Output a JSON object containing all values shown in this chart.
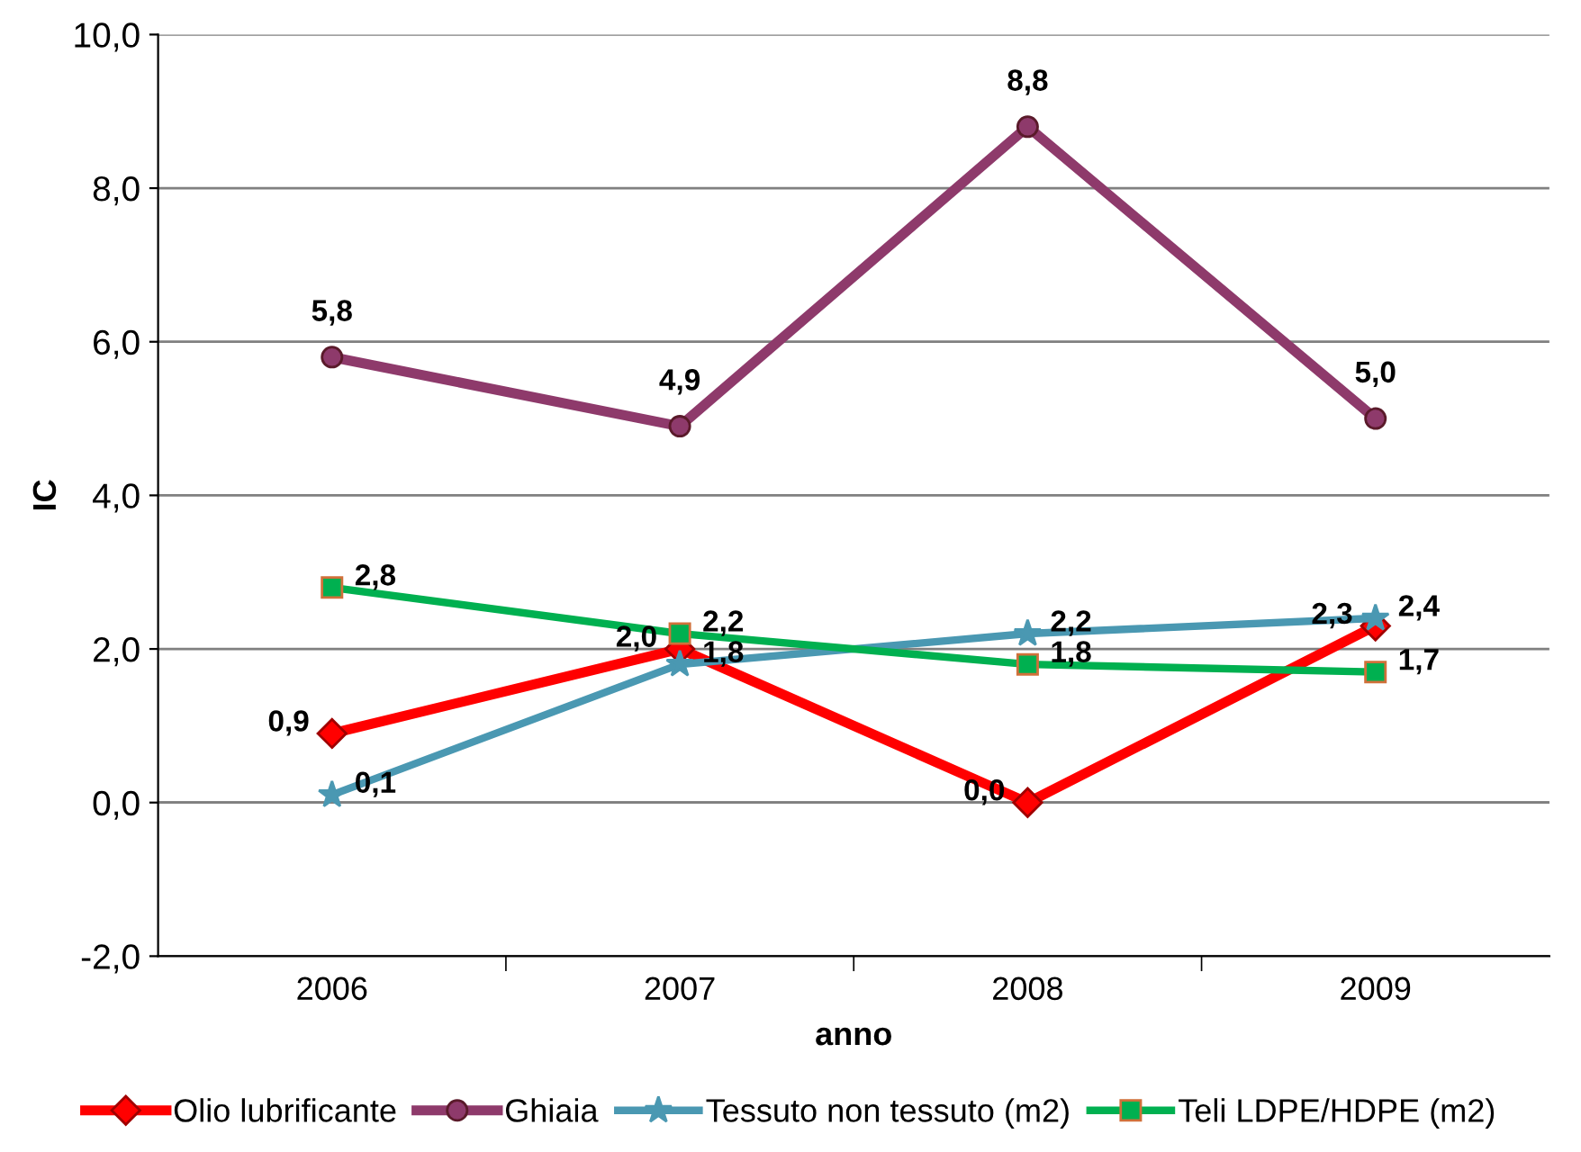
{
  "chart_data": {
    "type": "line",
    "xlabel": "anno",
    "ylabel": "IC",
    "categories": [
      "2006",
      "2007",
      "2008",
      "2009"
    ],
    "series": [
      {
        "name": "Olio lubrificante",
        "color": "#ff0000",
        "marker": "diamond",
        "values": [
          0.9,
          2.0,
          0.0,
          2.3
        ],
        "value_labels": [
          "0,9",
          "2,0",
          "0,0",
          "2,3"
        ]
      },
      {
        "name": "Ghiaia",
        "color": "#8e3a6b",
        "marker": "circle",
        "values": [
          5.8,
          4.9,
          8.8,
          5.0
        ],
        "value_labels": [
          "5,8",
          "4,9",
          "8,8",
          "5,0"
        ]
      },
      {
        "name": "Tessuto non tessuto (m2)",
        "color": "#4a98b2",
        "marker": "star",
        "values": [
          0.1,
          1.8,
          2.2,
          2.4
        ],
        "value_labels": [
          "0,1",
          "1,8",
          "2,2",
          "2,4"
        ]
      },
      {
        "name": "Teli LDPE/HDPE (m2)",
        "color": "#00b050",
        "marker": "square",
        "values": [
          2.8,
          2.2,
          1.8,
          1.7
        ],
        "value_labels": [
          "2,8",
          "2,2",
          "1,8",
          "1,7"
        ]
      }
    ],
    "ylim": [
      -2.0,
      10.0
    ],
    "yticks": [
      {
        "value": -2.0,
        "label": "-2,0"
      },
      {
        "value": 0.0,
        "label": "0,0"
      },
      {
        "value": 2.0,
        "label": "2,0"
      },
      {
        "value": 4.0,
        "label": "4,0"
      },
      {
        "value": 6.0,
        "label": "6,0"
      },
      {
        "value": 8.0,
        "label": "8,0"
      },
      {
        "value": 10.0,
        "label": "10,0"
      }
    ],
    "grid": "y",
    "legend": "bottom"
  }
}
